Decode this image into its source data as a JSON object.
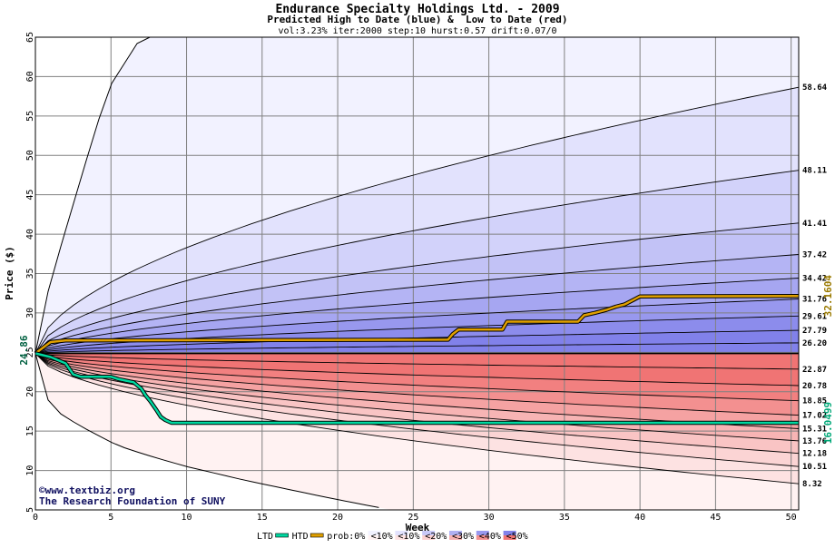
{
  "chart_data": {
    "type": "area",
    "title": "Endurance Specialty Holdings Ltd. - 2009",
    "subtitle": "Predicted High to Date (blue) &  Low to Date (red)",
    "params": "vol:3.23% iter:2000 step:10 hurst:0.57 drift:0.07/0",
    "xlabel": "Week",
    "ylabel": "Price ($)",
    "xlim": [
      0,
      50.5
    ],
    "ylim": [
      5,
      65
    ],
    "x_ticks": [
      "0",
      "5",
      "10",
      "15",
      "20",
      "25",
      "30",
      "35",
      "40",
      "45",
      "50"
    ],
    "y_ticks": [
      "5",
      "10",
      "15",
      "20",
      "25",
      "30",
      "35",
      "40",
      "45",
      "50",
      "55",
      "60",
      "65"
    ],
    "start_price": 24.86,
    "start_price_label": "24.86",
    "grid": true,
    "high_percentile_labels": [
      {
        "text": "58.64",
        "value": 58.64
      },
      {
        "text": "48.11",
        "value": 48.11
      },
      {
        "text": "41.41",
        "value": 41.41
      },
      {
        "text": "37.42",
        "value": 37.42
      },
      {
        "text": "34.42",
        "value": 34.42
      },
      {
        "text": "31.76",
        "value": 31.76
      },
      {
        "text": "29.61",
        "value": 29.61
      },
      {
        "text": "27.79",
        "value": 27.79
      },
      {
        "text": "26.20",
        "value": 26.2
      }
    ],
    "low_percentile_labels": [
      {
        "text": "22.87",
        "value": 22.87
      },
      {
        "text": "20.78",
        "value": 20.78
      },
      {
        "text": "18.85",
        "value": 18.85
      },
      {
        "text": "17.02",
        "value": 17.02
      },
      {
        "text": "15.31",
        "value": 15.31
      },
      {
        "text": "13.76",
        "value": 13.76
      },
      {
        "text": "12.18",
        "value": 12.18
      },
      {
        "text": "10.51",
        "value": 10.51
      },
      {
        "text": "8.32",
        "value": 8.32
      }
    ],
    "high_band_fills": [
      "#f2f2ff",
      "#e2e2fd",
      "#d2d2fa",
      "#c2c2f6",
      "#b4b4f4",
      "#a6a6f1",
      "#9898ee",
      "#8c8cec",
      "#8181ea"
    ],
    "low_band_fills": [
      "#fff2f2",
      "#fde2e2",
      "#fbd4d4",
      "#f9c4c4",
      "#f7b4b4",
      "#f5a2a2",
      "#f39090",
      "#f28080",
      "#f07474"
    ],
    "extreme_high_curve": {
      "x": [
        0,
        0.5,
        1,
        2,
        3,
        4,
        5,
        6,
        7
      ],
      "y": [
        24.86,
        30,
        34,
        40.5,
        47,
        53.5,
        59,
        62,
        65
      ]
    },
    "extreme_low_curve": {
      "x": [
        0,
        0.5,
        1,
        2,
        3,
        4,
        5,
        6,
        8,
        10,
        12,
        14,
        16,
        18,
        20,
        23
      ],
      "y": [
        24.86,
        21,
        18,
        16.8,
        15.6,
        14.6,
        13.6,
        12.8,
        11.6,
        10.5,
        9.6,
        8.7,
        7.9,
        7.1,
        6.3,
        5.2
      ]
    },
    "series": [
      {
        "name": "HTD",
        "color": "#e0a000",
        "x": [
          0,
          1,
          2,
          27.3,
          27.6,
          28,
          30.9,
          31.2,
          35.9,
          36.3,
          37,
          37.8,
          38.4,
          39,
          39.6,
          40,
          50.5
        ],
        "y": [
          24.86,
          26.3,
          26.5,
          26.6,
          27.3,
          27.9,
          27.9,
          28.9,
          28.9,
          29.7,
          30.0,
          30.4,
          30.8,
          31.1,
          31.7,
          32.1,
          32.16
        ]
      },
      {
        "name": "LTD",
        "color": "#00d8a0",
        "x": [
          0,
          1,
          2,
          2.5,
          3,
          5,
          5.5,
          6,
          6.5,
          7,
          7.3,
          7.6,
          8,
          8.3,
          8.6,
          9,
          50.5
        ],
        "y": [
          24.86,
          24.4,
          23.6,
          22.2,
          21.9,
          21.9,
          21.6,
          21.4,
          21.2,
          20.4,
          19.5,
          18.8,
          17.7,
          16.8,
          16.4,
          16.05,
          16.05
        ]
      }
    ],
    "end_labels": [
      {
        "text": "32.1604",
        "value": 32.1604,
        "color": "#9a7a00"
      },
      {
        "text": "16.0499",
        "value": 16.0499,
        "color": "#00a878"
      }
    ],
    "watermark": [
      "©www.textbiz.org",
      "The Research Foundation of SUNY"
    ],
    "legend": {
      "items": [
        {
          "label": "LTD",
          "kind": "line",
          "color": "#00d8a0"
        },
        {
          "label": "HTD",
          "kind": "line",
          "color": "#e0a000"
        },
        {
          "label": "prob:0%",
          "kind": "text"
        },
        {
          "label": "<10%",
          "kind": "swatch",
          "top": "#f2f2ff",
          "bottom": "#fff2f2"
        },
        {
          "label": "<10%",
          "kind": "swatch",
          "top": "#e2e2fd",
          "bottom": "#fde2e2"
        },
        {
          "label": "<20%",
          "kind": "swatch",
          "top": "#c8c8f8",
          "bottom": "#fbd0d0"
        },
        {
          "label": "<30%",
          "kind": "swatch",
          "top": "#b0b0f2",
          "bottom": "#f7b0b0"
        },
        {
          "label": "<40%",
          "kind": "swatch",
          "top": "#9898ee",
          "bottom": "#f39090"
        },
        {
          "label": "<50%",
          "kind": "swatch",
          "top": "#8181ea",
          "bottom": "#f07474"
        }
      ]
    },
    "colors": {
      "axis": "#000000",
      "grid": "#808080",
      "text": "#000000",
      "watermark": "#101060"
    }
  }
}
